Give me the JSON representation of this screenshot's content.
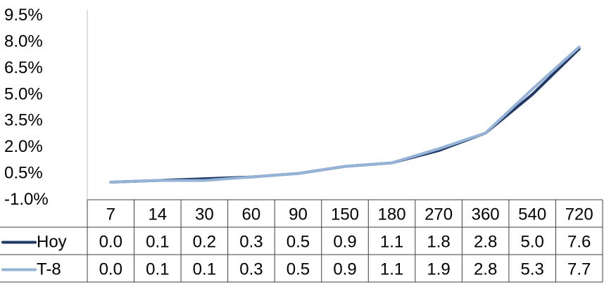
{
  "chart_data": {
    "type": "line",
    "categories": [
      "7",
      "14",
      "30",
      "60",
      "90",
      "150",
      "180",
      "270",
      "360",
      "540",
      "720"
    ],
    "series": [
      {
        "name": "Hoy",
        "color": "#1f3864",
        "values": [
          0.0,
          0.1,
          0.2,
          0.3,
          0.5,
          0.9,
          1.1,
          1.8,
          2.8,
          5.0,
          7.6
        ]
      },
      {
        "name": "T-8",
        "color": "#95b3d7",
        "values": [
          0.0,
          0.1,
          0.1,
          0.3,
          0.5,
          0.9,
          1.1,
          1.9,
          2.8,
          5.3,
          7.7
        ]
      }
    ],
    "ylim": [
      -1.0,
      9.5
    ],
    "yticks": [
      "9.5%",
      "8.0%",
      "6.5%",
      "5.0%",
      "3.5%",
      "2.0%",
      "0.5%",
      "-1.0%"
    ],
    "yticks_values": [
      9.5,
      8.0,
      6.5,
      5.0,
      3.5,
      2.0,
      0.5,
      -1.0
    ],
    "value_format_decimals": 1,
    "grid": false,
    "data_table": true,
    "legend": "data-table-left"
  }
}
